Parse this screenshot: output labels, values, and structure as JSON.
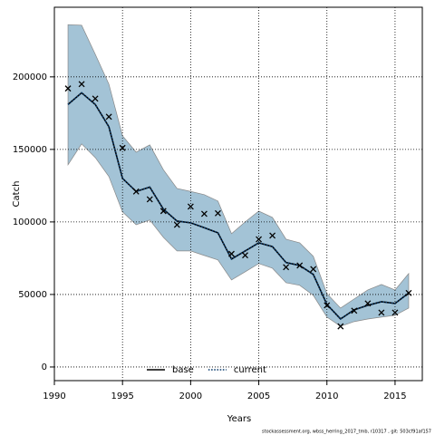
{
  "chart_data": {
    "type": "line",
    "x_label": "Years",
    "y_label": "Catch",
    "x": [
      1991,
      1992,
      1993,
      1994,
      1995,
      1996,
      1997,
      1998,
      1999,
      2000,
      2001,
      2002,
      2003,
      2004,
      2005,
      2006,
      2007,
      2008,
      2009,
      2010,
      2011,
      2012,
      2013,
      2014,
      2015,
      2016
    ],
    "series": [
      {
        "name": "base",
        "color": "#000000",
        "values": [
          181000,
          189000,
          181000,
          165600,
          130000,
          121000,
          124000,
          108800,
          100600,
          99400,
          96000,
          92500,
          74400,
          80000,
          85600,
          83000,
          72000,
          70000,
          63800,
          43100,
          33100,
          39400,
          42500,
          45000,
          43800,
          51000
        ]
      },
      {
        "name": "current",
        "color": "#0b3d6e",
        "dotted": true,
        "values": [
          181000,
          189000,
          181000,
          165600,
          130000,
          121000,
          124000,
          108800,
          100600,
          99400,
          96000,
          92500,
          74400,
          80000,
          85600,
          83000,
          72000,
          70000,
          63800,
          43100,
          33100,
          39400,
          42500,
          45000,
          43800,
          51000
        ]
      }
    ],
    "band": {
      "color": "#a3c3d6",
      "upper": [
        236000,
        235600,
        215600,
        195000,
        159400,
        148100,
        153100,
        136000,
        123100,
        121000,
        118800,
        114400,
        91900,
        100000,
        107500,
        103100,
        88100,
        85600,
        76300,
        50600,
        40600,
        46900,
        53100,
        56900,
        53100,
        64400
      ],
      "lower": [
        139400,
        153800,
        144400,
        131300,
        106900,
        98100,
        101300,
        89400,
        80000,
        80000,
        76900,
        73800,
        60000,
        65600,
        71300,
        68100,
        58100,
        56300,
        49400,
        34400,
        28100,
        31300,
        33100,
        34400,
        35600,
        40600
      ]
    },
    "observations": [
      192000,
      195000,
      185000,
      172500,
      151000,
      121000,
      115600,
      107500,
      98000,
      110600,
      105600,
      106000,
      78000,
      77000,
      88000,
      90600,
      68800,
      70000,
      67500,
      42500,
      28000,
      38800,
      43800,
      37500,
      37500,
      51000
    ],
    "xlim": [
      1990,
      2017
    ],
    "ylim": [
      -9400,
      248000
    ],
    "xticks": [
      1990,
      1995,
      2000,
      2005,
      2010,
      2015
    ],
    "yticks": [
      0,
      50000,
      100000,
      150000,
      200000
    ],
    "grid": true,
    "legend": "bottom",
    "footnote": "stockassessment.org, wbss_herring_2017_tmb, r10317 , git: 503cf91af157"
  }
}
